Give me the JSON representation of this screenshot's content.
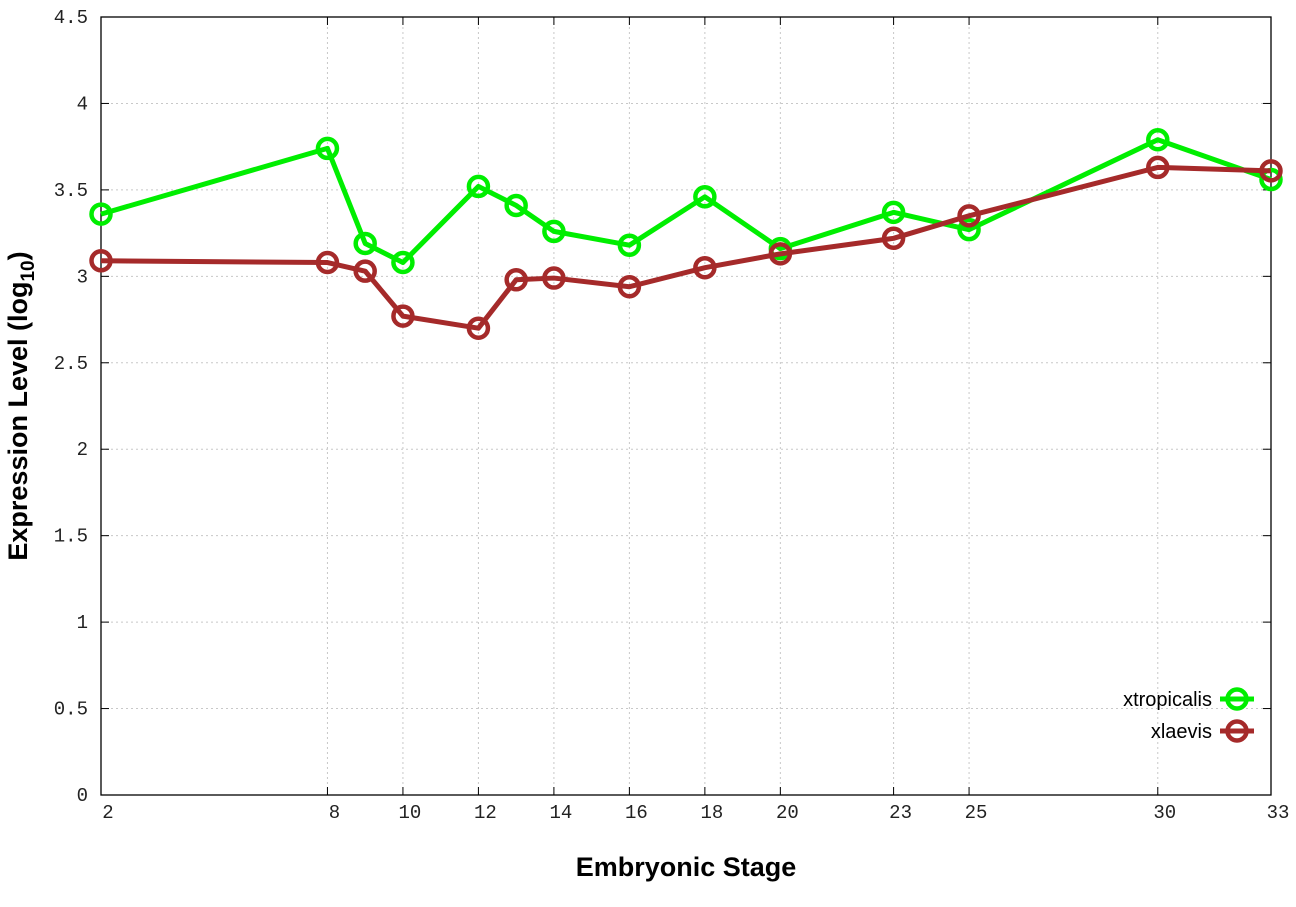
{
  "chart_data": {
    "type": "line",
    "title": "",
    "xlabel": "Embryonic Stage",
    "ylabel": "Expression Level (log10)",
    "xlim": [
      2,
      33
    ],
    "ylim": [
      0,
      4.5
    ],
    "xticks": [
      2,
      8,
      10,
      12,
      14,
      16,
      18,
      20,
      23,
      25,
      30,
      33
    ],
    "yticks": [
      "0",
      "0.5",
      "1",
      "1.5",
      "2",
      "2.5",
      "3",
      "3.5",
      "4",
      "4.5"
    ],
    "grid": true,
    "legend_position": "bottom-right",
    "x": [
      2,
      8,
      9,
      10,
      12,
      13,
      14,
      16,
      18,
      20,
      23,
      25,
      30,
      33
    ],
    "series": [
      {
        "name": "xtropicalis",
        "color": "#00ee00",
        "marker": "open-circle",
        "values": [
          3.36,
          3.74,
          3.19,
          3.08,
          3.52,
          3.41,
          3.26,
          3.18,
          3.46,
          3.16,
          3.37,
          3.27,
          3.79,
          3.56
        ]
      },
      {
        "name": "xlaevis",
        "color": "#a52a2a",
        "marker": "open-circle",
        "values": [
          3.09,
          3.08,
          3.03,
          2.77,
          2.7,
          2.98,
          2.99,
          2.94,
          3.05,
          3.13,
          3.22,
          3.35,
          3.63,
          3.61
        ]
      }
    ]
  }
}
